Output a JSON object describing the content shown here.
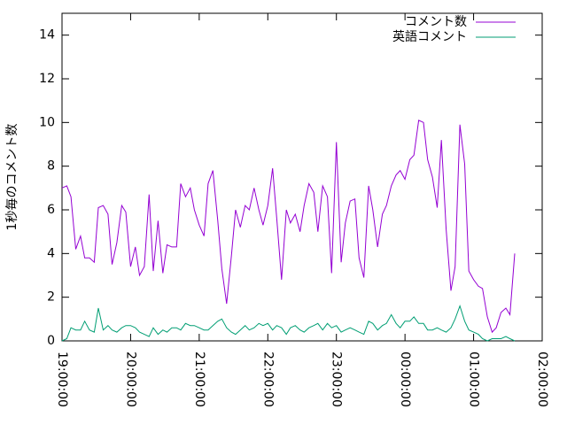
{
  "chart_data": {
    "type": "line",
    "ylabel": "1秒毎のコメント数",
    "x": [
      19,
      19.07,
      19.13,
      19.2,
      19.27,
      19.33,
      19.4,
      19.47,
      19.53,
      19.6,
      19.67,
      19.73,
      19.8,
      19.87,
      19.93,
      20,
      20.07,
      20.13,
      20.2,
      20.27,
      20.33,
      20.4,
      20.47,
      20.53,
      20.6,
      20.67,
      20.73,
      20.8,
      20.87,
      20.93,
      21,
      21.07,
      21.13,
      21.2,
      21.27,
      21.33,
      21.4,
      21.47,
      21.53,
      21.6,
      21.67,
      21.73,
      21.8,
      21.87,
      21.93,
      22,
      22.07,
      22.13,
      22.2,
      22.27,
      22.33,
      22.4,
      22.47,
      22.53,
      22.6,
      22.67,
      22.73,
      22.8,
      22.87,
      22.93,
      23,
      23.07,
      23.13,
      23.2,
      23.27,
      23.33,
      23.4,
      23.47,
      23.53,
      23.6,
      23.67,
      23.73,
      23.8,
      23.87,
      23.93,
      24,
      24.07,
      24.13,
      24.2,
      24.27,
      24.33,
      24.4,
      24.47,
      24.53,
      24.6,
      24.67,
      24.73,
      24.8,
      24.87,
      24.93,
      25,
      25.07,
      25.13,
      25.2,
      25.27,
      25.33,
      25.4,
      25.47,
      25.53,
      25.6
    ],
    "series": [
      {
        "name": "コメント数",
        "color": "#9400d3",
        "values": [
          7.0,
          7.1,
          6.6,
          4.2,
          4.8,
          3.8,
          3.8,
          3.6,
          6.1,
          6.2,
          5.8,
          3.5,
          4.5,
          6.2,
          5.9,
          3.4,
          4.3,
          3.0,
          3.4,
          6.7,
          3.2,
          5.5,
          3.1,
          4.4,
          4.3,
          4.3,
          7.2,
          6.6,
          7.0,
          6.0,
          5.3,
          4.8,
          7.2,
          7.8,
          5.5,
          3.3,
          1.7,
          3.9,
          6.0,
          5.2,
          6.2,
          6.0,
          7.0,
          6.0,
          5.3,
          6.2,
          7.9,
          5.6,
          2.8,
          6.0,
          5.4,
          5.8,
          5.0,
          6.2,
          7.2,
          6.8,
          5.0,
          7.1,
          6.6,
          3.1,
          9.1,
          3.6,
          5.4,
          6.4,
          6.5,
          3.8,
          2.9,
          7.1,
          6.0,
          4.3,
          5.8,
          6.2,
          7.1,
          7.6,
          7.8,
          7.4,
          8.3,
          8.5,
          10.1,
          10.0,
          8.3,
          7.5,
          6.1,
          9.2,
          5.1,
          2.3,
          3.4,
          9.9,
          8.1,
          3.2,
          2.8,
          2.5,
          2.4,
          1.1,
          0.4,
          0.6,
          1.3,
          1.5,
          1.2,
          4.0
        ]
      },
      {
        "name": "英語コメント",
        "color": "#009e73",
        "values": [
          0.0,
          0.1,
          0.6,
          0.5,
          0.5,
          0.9,
          0.5,
          0.4,
          1.5,
          0.5,
          0.7,
          0.5,
          0.4,
          0.6,
          0.7,
          0.7,
          0.6,
          0.4,
          0.3,
          0.2,
          0.6,
          0.3,
          0.5,
          0.4,
          0.6,
          0.6,
          0.5,
          0.8,
          0.7,
          0.7,
          0.6,
          0.5,
          0.5,
          0.7,
          0.9,
          1.0,
          0.6,
          0.4,
          0.3,
          0.5,
          0.7,
          0.5,
          0.6,
          0.8,
          0.7,
          0.8,
          0.5,
          0.7,
          0.6,
          0.3,
          0.6,
          0.7,
          0.5,
          0.4,
          0.6,
          0.7,
          0.8,
          0.5,
          0.8,
          0.6,
          0.7,
          0.4,
          0.5,
          0.6,
          0.5,
          0.4,
          0.3,
          0.9,
          0.8,
          0.5,
          0.7,
          0.8,
          1.2,
          0.8,
          0.6,
          0.9,
          0.9,
          1.1,
          0.8,
          0.8,
          0.5,
          0.5,
          0.6,
          0.5,
          0.4,
          0.6,
          1.0,
          1.6,
          0.9,
          0.5,
          0.4,
          0.3,
          0.1,
          0.0,
          0.1,
          0.1,
          0.1,
          0.2,
          0.1,
          0.0
        ]
      }
    ],
    "xlim": [
      19,
      26
    ],
    "xticks": [
      {
        "value": 19,
        "label": "19:00:00"
      },
      {
        "value": 20,
        "label": "20:00:00"
      },
      {
        "value": 21,
        "label": "21:00:00"
      },
      {
        "value": 22,
        "label": "22:00:00"
      },
      {
        "value": 23,
        "label": "23:00:00"
      },
      {
        "value": 24,
        "label": "00:00:00"
      },
      {
        "value": 25,
        "label": "01:00:00"
      },
      {
        "value": 26,
        "label": "02:00:00"
      }
    ],
    "ylim": [
      0,
      15
    ],
    "yticks": [
      0,
      2,
      4,
      6,
      8,
      10,
      12,
      14
    ],
    "grid": false,
    "legend": "top-right"
  }
}
